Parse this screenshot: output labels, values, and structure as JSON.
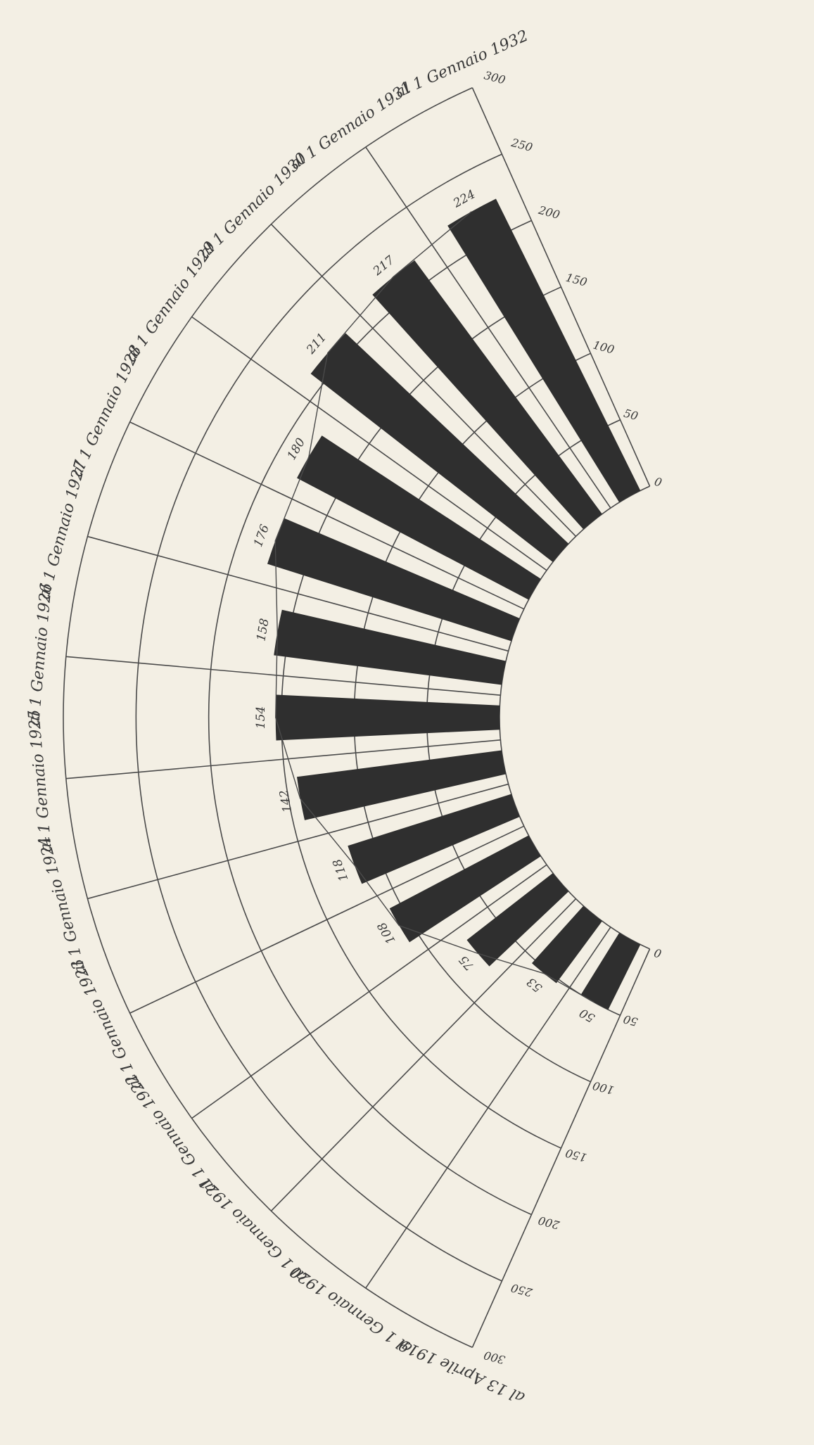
{
  "chart_data": {
    "type": "polar-bar",
    "x": [
      "al 13 Aprile 1919",
      "al 1 Gennaio 1920",
      "al 1 Gennaio 1921",
      "al 1 Gennaio 1922",
      "al 1 Gennaio 1923",
      "al 1 Gennaio 1924",
      "al 1 Gennaio 1925",
      "al 1 Gennaio 1926",
      "al 1 Gennaio 1927",
      "al 1 Gennaio 1928",
      "al 1 Gennaio 1929",
      "al 1 Gennaio 1930",
      "al 1 Gennaio 1931",
      "al 1 Gennaio 1932"
    ],
    "values": [
      50,
      53,
      75,
      108,
      118,
      142,
      154,
      158,
      176,
      180,
      211,
      217,
      224,
      null
    ],
    "rlim": [
      0,
      300
    ],
    "rticks": [
      0,
      50,
      100,
      150,
      200,
      250,
      300
    ],
    "color": "#2f2f2f",
    "grid": true
  }
}
